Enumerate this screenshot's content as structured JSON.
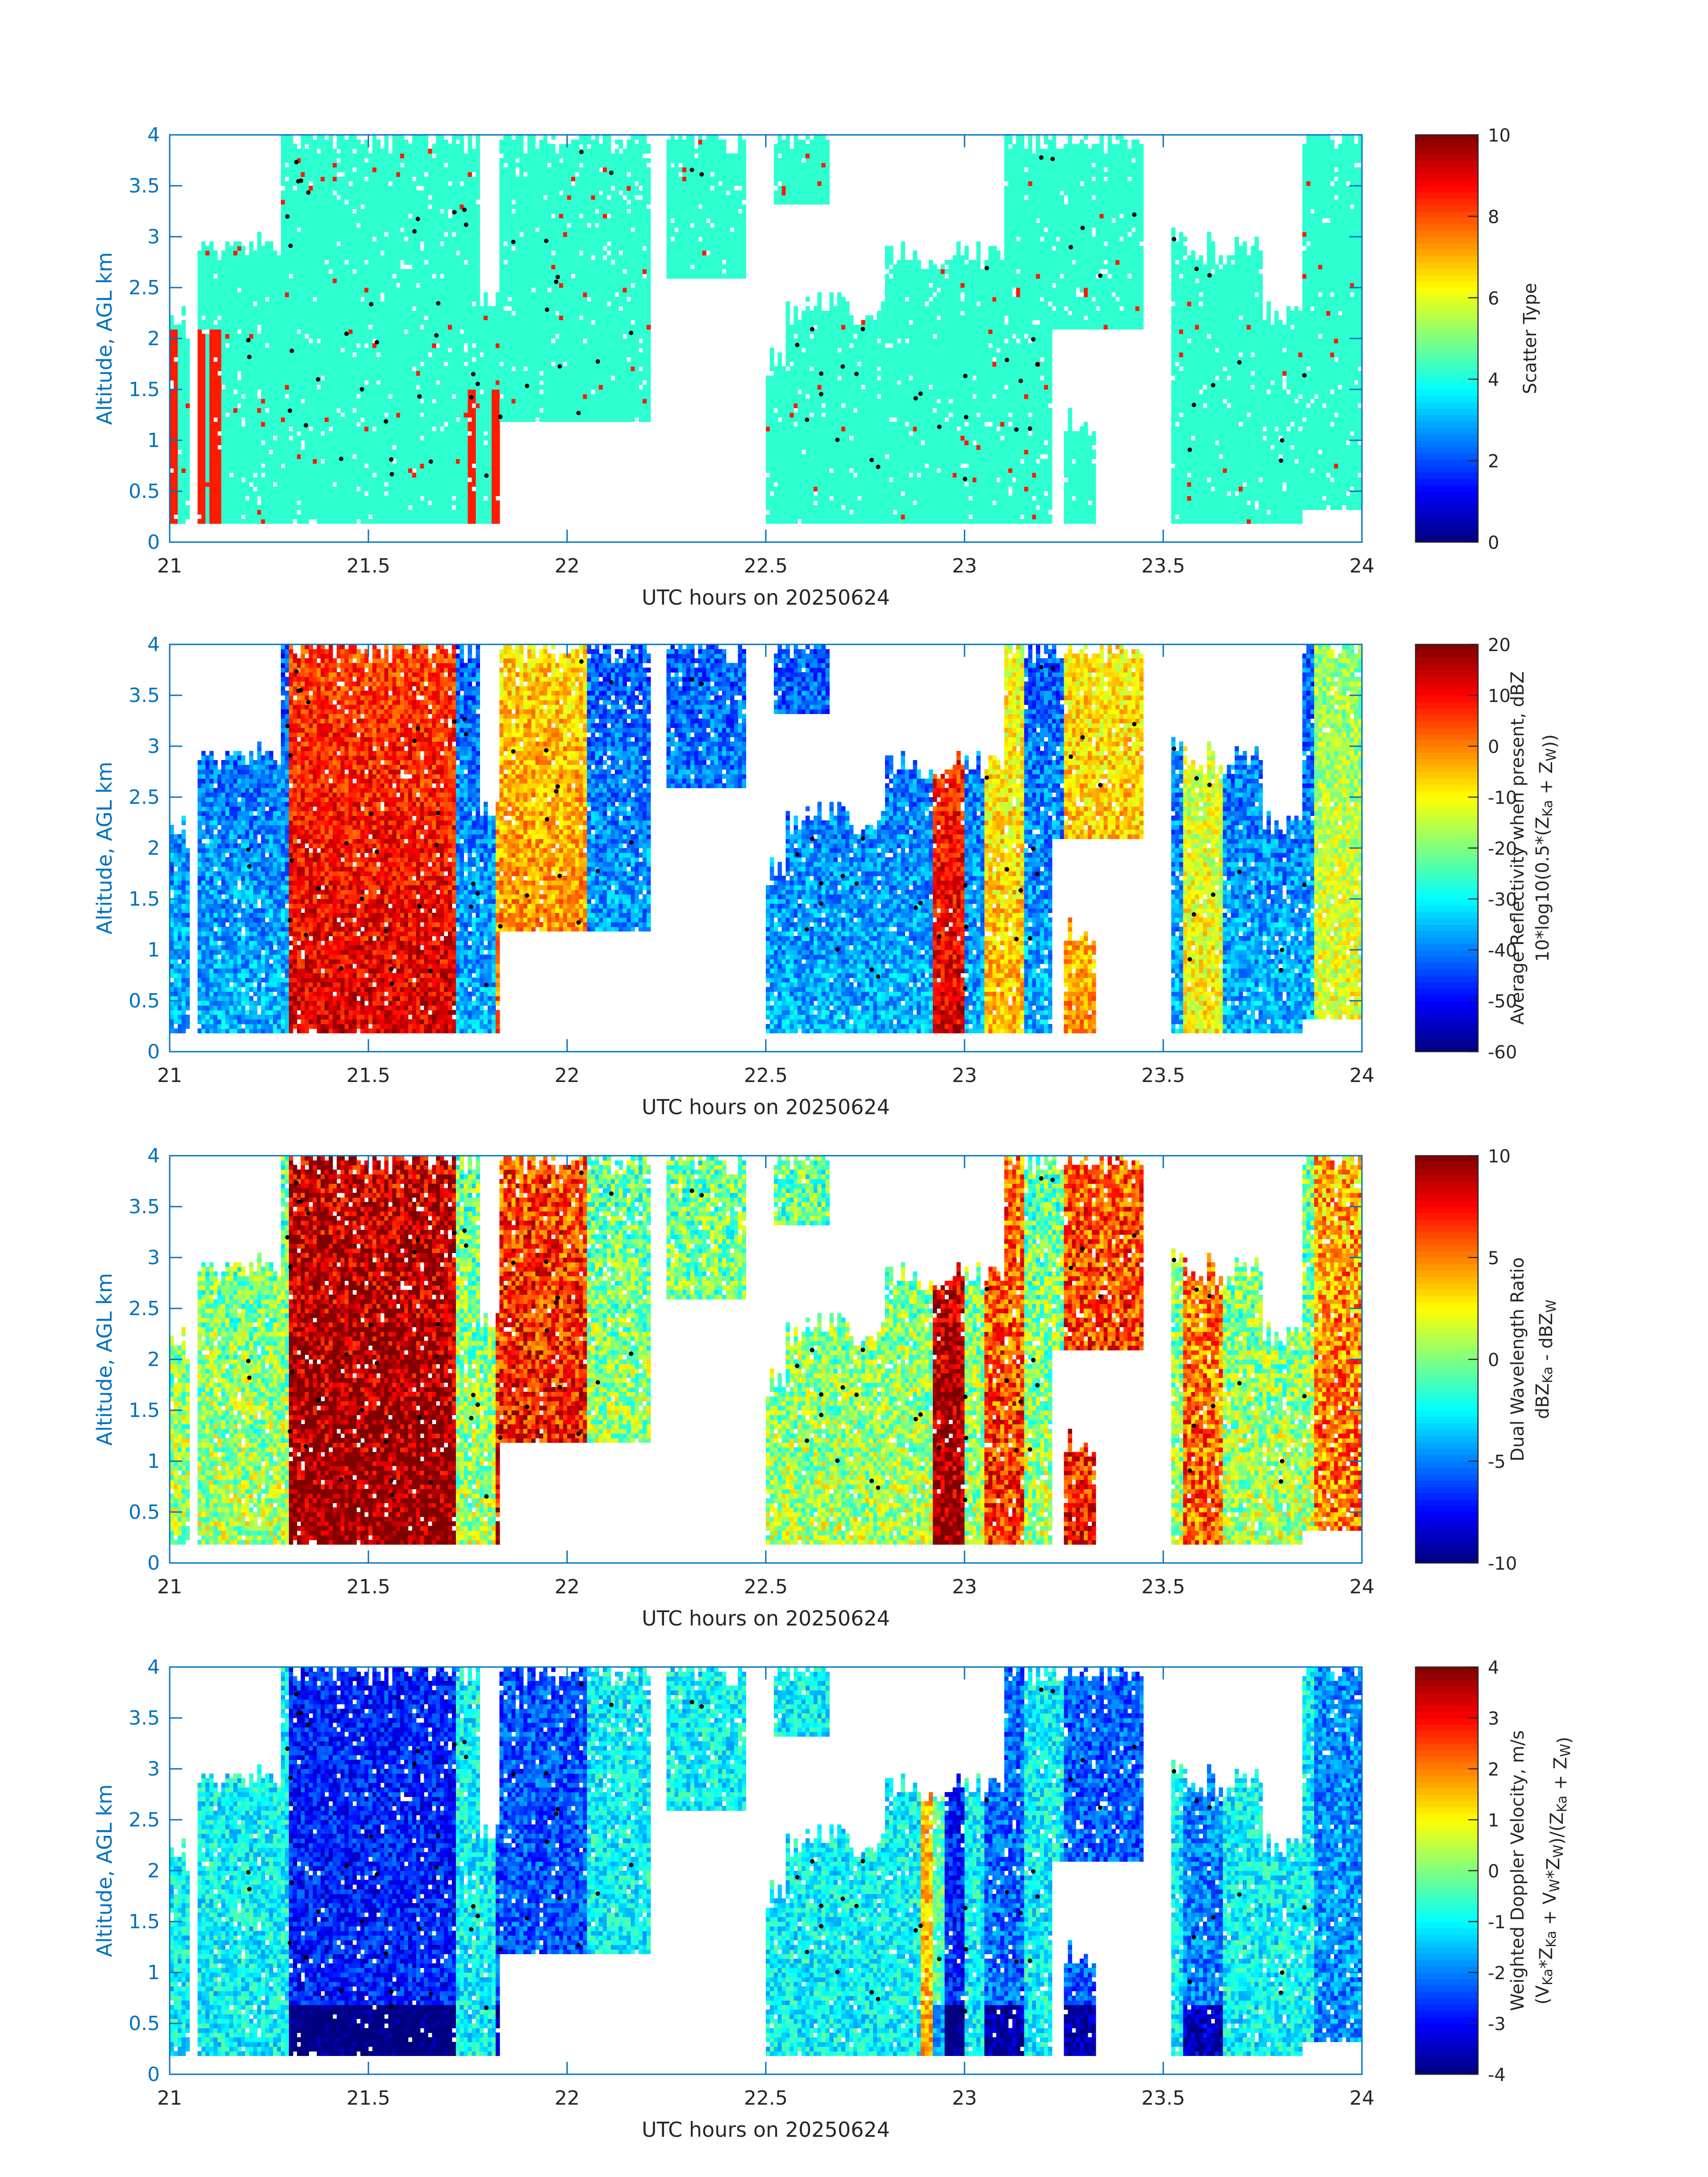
{
  "figure": {
    "background": "#ffffff",
    "axis_color": "#0072bd",
    "text_color": "#262626"
  },
  "chart_data": [
    {
      "type": "heatmap",
      "title": "",
      "xlabel": "UTC hours on 20250624",
      "ylabel": "Altitude, AGL km",
      "xlim": [
        21,
        24
      ],
      "ylim": [
        0,
        4
      ],
      "xticks": [
        "21",
        "21.5",
        "22",
        "22.5",
        "23",
        "23.5",
        "24"
      ],
      "yticks": [
        "0",
        "0.5",
        "1",
        "1.5",
        "2",
        "2.5",
        "3",
        "3.5",
        "4"
      ],
      "colorbar": {
        "label_lines": [
          "Scatter Type"
        ],
        "range": [
          0,
          10
        ],
        "ticks": [
          "0",
          "2",
          "4",
          "6",
          "8",
          "10"
        ],
        "colormap": "jet"
      },
      "field": "scatter_type",
      "grid": false
    },
    {
      "type": "heatmap",
      "title": "",
      "xlabel": "UTC hours on 20250624",
      "ylabel": "Altitude, AGL km",
      "xlim": [
        21,
        24
      ],
      "ylim": [
        0,
        4
      ],
      "xticks": [
        "21",
        "21.5",
        "22",
        "22.5",
        "23",
        "23.5",
        "24"
      ],
      "yticks": [
        "0",
        "0.5",
        "1",
        "1.5",
        "2",
        "2.5",
        "3",
        "3.5",
        "4"
      ],
      "colorbar": {
        "label_lines": [
          "Average Reflectivity when present, dBZ",
          "10*log10(0.5*(Z_Ka + Z_W))"
        ],
        "range": [
          -60,
          20
        ],
        "ticks": [
          "-60",
          "-50",
          "-40",
          "-30",
          "-20",
          "-10",
          "0",
          "10",
          "20"
        ],
        "colormap": "jet"
      },
      "field": "reflectivity",
      "grid": false
    },
    {
      "type": "heatmap",
      "title": "",
      "xlabel": "UTC hours on 20250624",
      "ylabel": "Altitude, AGL km",
      "xlim": [
        21,
        24
      ],
      "ylim": [
        0,
        4
      ],
      "xticks": [
        "21",
        "21.5",
        "22",
        "22.5",
        "23",
        "23.5",
        "24"
      ],
      "yticks": [
        "0",
        "0.5",
        "1",
        "1.5",
        "2",
        "2.5",
        "3",
        "3.5",
        "4"
      ],
      "colorbar": {
        "label_lines": [
          "Dual Wavelength Ratio",
          "dBZ_Ka - dBZ_W"
        ],
        "range": [
          -10,
          10
        ],
        "ticks": [
          "-10",
          "-5",
          "0",
          "5",
          "10"
        ],
        "colormap": "jet"
      },
      "field": "dwr",
      "grid": false
    },
    {
      "type": "heatmap",
      "title": "",
      "xlabel": "UTC hours on 20250624",
      "ylabel": "Altitude, AGL km",
      "xlim": [
        21,
        24
      ],
      "ylim": [
        0,
        4
      ],
      "xticks": [
        "21",
        "21.5",
        "22",
        "22.5",
        "23",
        "23.5",
        "24"
      ],
      "yticks": [
        "0",
        "0.5",
        "1",
        "1.5",
        "2",
        "2.5",
        "3",
        "3.5",
        "4"
      ],
      "colorbar": {
        "label_lines": [
          "Weighted Doppler Velocity, m/s",
          "(V_Ka*Z_Ka + V_W*Z_W)/(Z_Ka + Z_W)"
        ],
        "range": [
          -4,
          4
        ],
        "ticks": [
          "-4",
          "-3",
          "-2",
          "-1",
          "0",
          "1",
          "2",
          "3",
          "4"
        ],
        "colormap": "jet"
      },
      "field": "velocity",
      "grid": false
    }
  ]
}
